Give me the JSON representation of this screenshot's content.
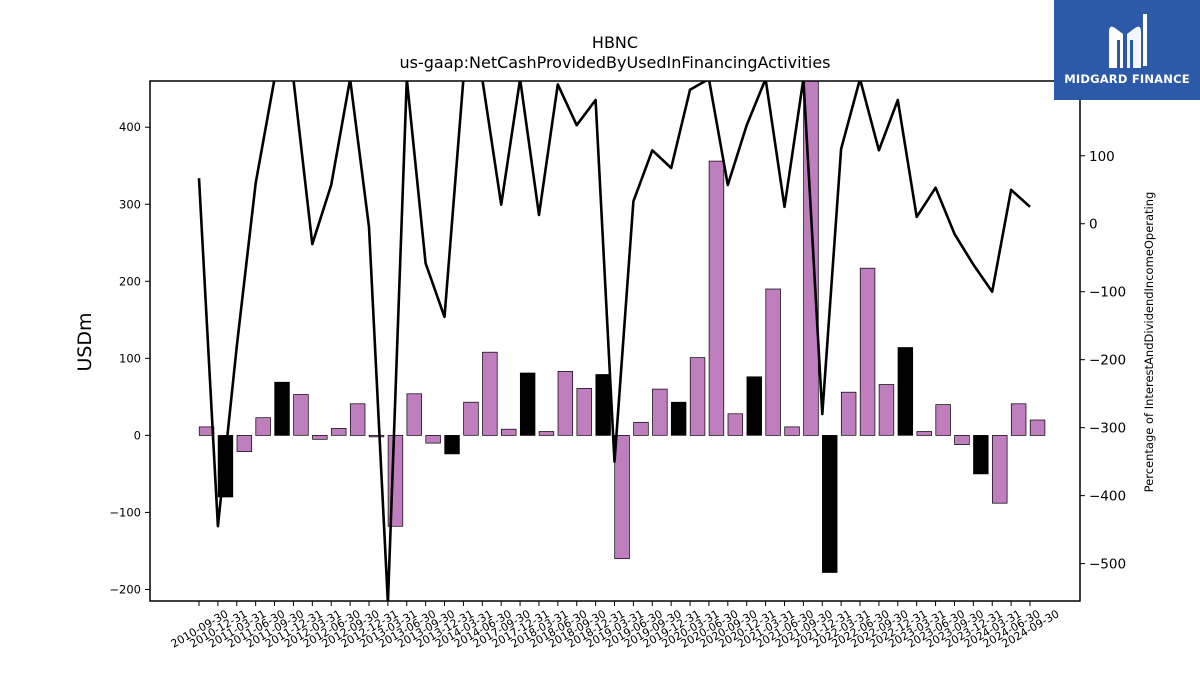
{
  "chart_data": {
    "type": "bar",
    "title": "HBNC",
    "subtitle": "us-gaap:NetCashProvidedByUsedInFinancingActivities",
    "ylabel": "USDm",
    "y2label": "Percentage of InterestAndDividendIncomeOperating",
    "ylim": [
      -215,
      460
    ],
    "y2lim": [
      -555,
      210
    ],
    "yticks": [
      -200,
      -100,
      0,
      100,
      200,
      300,
      400
    ],
    "y2ticks": [
      -500,
      -400,
      -300,
      -200,
      -100,
      0,
      100
    ],
    "grid": false,
    "categories": [
      "2010-09-30",
      "2010-12-31",
      "2011-03-31",
      "2011-06-30",
      "2011-09-30",
      "2011-12-31",
      "2012-03-31",
      "2012-06-30",
      "2012-09-30",
      "2012-12-31",
      "2013-03-31",
      "2013-06-30",
      "2013-09-30",
      "2013-12-31",
      "2014-03-31",
      "2014-06-30",
      "2017-09-30",
      "2017-12-31",
      "2018-03-31",
      "2018-06-30",
      "2018-09-30",
      "2018-12-31",
      "2019-03-31",
      "2019-06-30",
      "2019-09-30",
      "2019-12-31",
      "2020-03-31",
      "2020-06-30",
      "2020-09-30",
      "2020-12-31",
      "2021-03-31",
      "2021-06-30",
      "2021-09-30",
      "2021-12-31",
      "2022-03-31",
      "2022-06-30",
      "2022-09-30",
      "2022-12-31",
      "2023-03-31",
      "2023-06-30",
      "2023-09-30",
      "2023-12-31",
      "2024-03-31",
      "2024-06-30",
      "2024-09-30"
    ],
    "series": [
      {
        "type": "bar",
        "colors": {
          "q4": "#000000",
          "other": "#bf7fbf"
        },
        "values": [
          11,
          -80,
          -21,
          23,
          69,
          53,
          -5,
          9,
          41,
          -2,
          -118,
          54,
          -10,
          -24,
          43,
          108,
          8,
          81,
          5,
          83,
          61,
          79,
          -160,
          17,
          60,
          43,
          101,
          356,
          28,
          76,
          190,
          11,
          460,
          -178,
          56,
          217,
          66,
          114,
          5,
          40,
          -12,
          -50,
          -88,
          41,
          20
        ],
        "highlight": [
          false,
          true,
          false,
          false,
          true,
          false,
          false,
          false,
          false,
          false,
          false,
          false,
          false,
          true,
          false,
          false,
          false,
          true,
          false,
          false,
          false,
          true,
          false,
          false,
          false,
          true,
          false,
          false,
          false,
          true,
          false,
          false,
          false,
          true,
          false,
          false,
          false,
          true,
          false,
          false,
          false,
          true,
          false,
          false,
          false
        ]
      },
      {
        "type": "line",
        "axis": "right",
        "color": "#000000",
        "values": [
          67,
          -445,
          -180,
          60,
          350,
          350,
          -30,
          57,
          215,
          -5,
          -560,
          300,
          -58,
          -137,
          300,
          300,
          28,
          220,
          13,
          205,
          145,
          182,
          -350,
          33,
          108,
          82,
          197,
          300,
          57,
          145,
          300,
          25,
          300,
          -280,
          110,
          300,
          108,
          182,
          10,
          53,
          -15,
          -60,
          -100,
          50,
          25
        ]
      }
    ]
  },
  "logo": {
    "text": "MIDGARD FINANCE",
    "bg_color": "#2d5aa8"
  }
}
